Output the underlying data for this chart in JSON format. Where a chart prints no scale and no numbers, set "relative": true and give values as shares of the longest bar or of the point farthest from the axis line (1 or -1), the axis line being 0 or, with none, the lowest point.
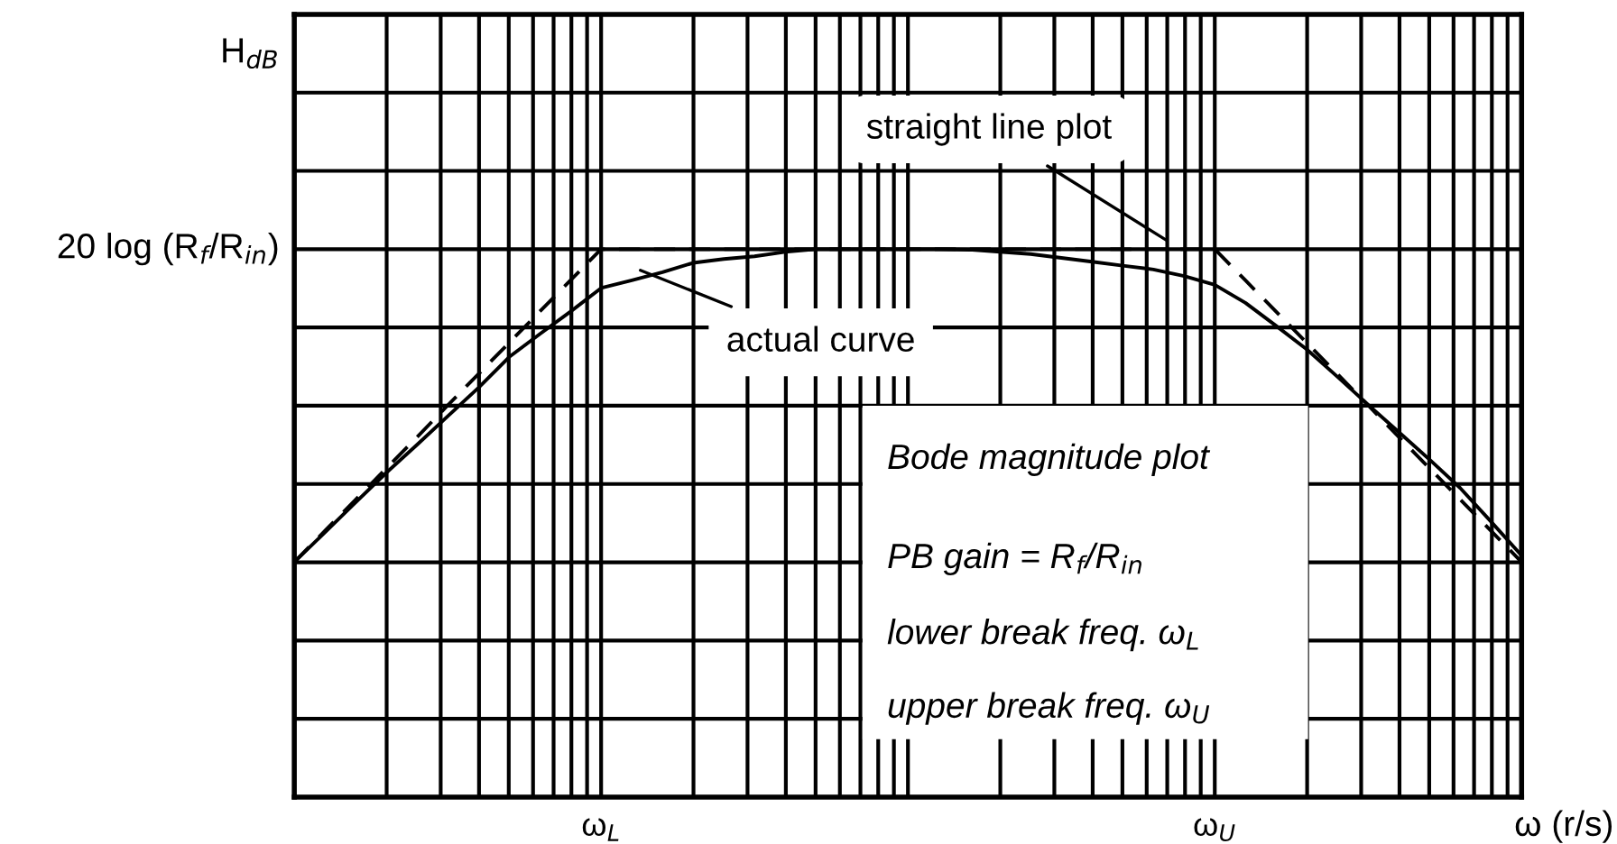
{
  "chart_data": {
    "type": "line",
    "relative": true,
    "xlabel": "ω (r/s)",
    "categories": [
      null,
      null,
      null,
      null,
      null,
      null,
      null,
      null,
      null,
      null,
      "ω$_{L}$",
      null,
      null,
      null,
      null,
      null,
      null,
      null,
      null,
      null,
      null,
      null,
      null,
      null,
      null,
      null,
      null,
      null,
      null,
      null,
      "ω$_{U}$",
      null,
      null,
      null,
      null,
      null,
      null,
      null,
      null,
      null,
      null
    ],
    "grid": true,
    "series": [
      {
        "color": "#000000",
        "line_style": "dashed",
        "values": [
          0.429,
          0.486,
          0.543,
          0.6,
          0.657,
          0.715,
          0.772,
          0.829,
          0.886,
          0.943,
          1,
          1,
          1,
          1,
          1,
          1,
          1,
          1,
          1,
          1,
          1,
          1,
          1,
          1,
          1,
          1,
          1,
          1,
          1,
          1,
          1,
          0.943,
          0.886,
          0.829,
          0.772,
          0.715,
          0.657,
          0.6,
          0.543,
          0.486,
          0.429
        ]
      },
      {
        "color": "#000000",
        "line_style": "solid",
        "values": [
          0.429,
          0.483,
          0.538,
          0.592,
          0.643,
          0.695,
          0.747,
          0.803,
          0.845,
          0.886,
          0.929,
          0.943,
          0.958,
          0.975,
          0.982,
          0.987,
          0.995,
          1,
          1,
          1,
          1,
          1,
          0.999,
          0.995,
          0.991,
          0.984,
          0.977,
          0.97,
          0.963,
          0.951,
          0.935,
          0.902,
          0.86,
          0.817,
          0.767,
          0.716,
          0.666,
          0.616,
          0.564,
          0.503,
          0.441
        ]
      }
    ],
    "annotations": [
      "H$_{dB}$",
      "20 log (R$_{f}$/R$_{in}$)",
      "straight line plot",
      "actual curve",
      "Bode magnitude plot",
      "PB gain = R$_{f}$/R$_{in}$",
      "lower break freq. ω$_{L}$",
      "upper break freq. ω$_{U}$"
    ]
  }
}
